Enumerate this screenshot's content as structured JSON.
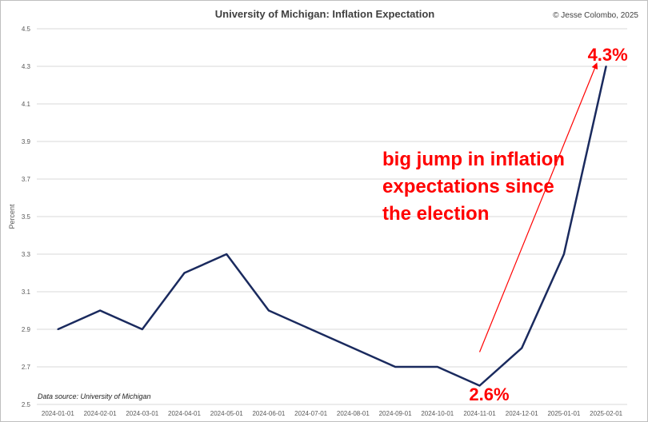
{
  "chart_data": {
    "type": "line",
    "title": "University of Michigan: Inflation Expectation",
    "copyright": "© Jesse Colombo, 2025",
    "ylabel": "Percent",
    "xlabel": "",
    "source": "Data source: University of Michigan",
    "ylim": [
      2.5,
      4.5
    ],
    "y_ticks": [
      "2.5",
      "2.7",
      "2.9",
      "3.1",
      "3.3",
      "3.5",
      "3.7",
      "3.9",
      "4.1",
      "4.3",
      "4.5"
    ],
    "grid": true,
    "line_color": "#1a2a5e",
    "annotation_color": "#ff0000",
    "x": [
      "2024-01-01",
      "2024-02-01",
      "2024-03-01",
      "2024-04-01",
      "2024-05-01",
      "2024-06-01",
      "2024-07-01",
      "2024-08-01",
      "2024-09-01",
      "2024-10-01",
      "2024-11-01",
      "2024-12-01",
      "2025-01-01",
      "2025-02-01"
    ],
    "series": [
      {
        "values": [
          2.9,
          3.0,
          2.9,
          3.2,
          3.3,
          3.0,
          2.9,
          2.8,
          2.7,
          2.7,
          2.6,
          2.8,
          3.3,
          4.3
        ]
      }
    ],
    "annotations": {
      "low_label": "2.6%",
      "high_label": "4.3%",
      "callout_lines": [
        "big jump in inflation",
        "expectations since",
        "the election"
      ],
      "arrow_from_index": 10,
      "arrow_to_index": 13
    }
  }
}
